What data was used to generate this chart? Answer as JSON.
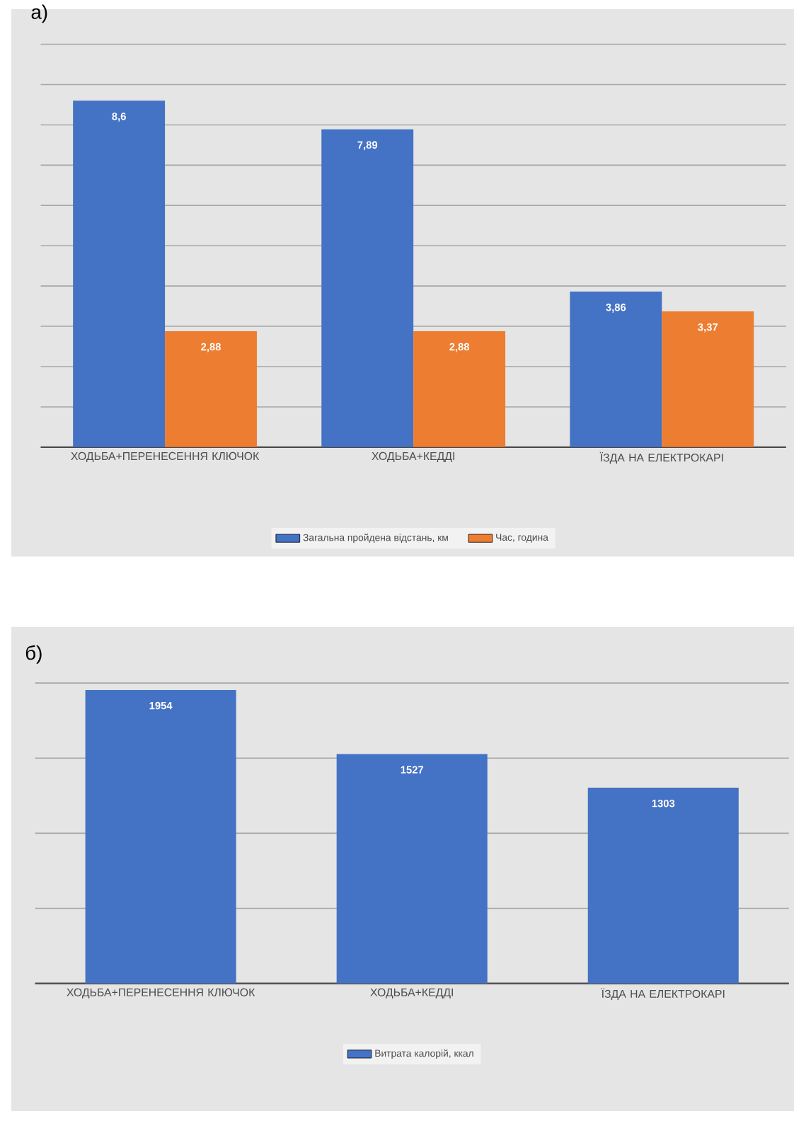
{
  "chart_data": [
    {
      "type": "bar",
      "title": "а)",
      "categories": [
        "ХОДЬБА+ПЕРЕНЕСЕННЯ КЛЮЧОК",
        "ХОДЬБА+КЕДДІ",
        "ЇЗДА НА ЕЛЕКТРОКАРІ"
      ],
      "series": [
        {
          "name": "Загальна пройдена відстань, км",
          "color": "#4472c4",
          "values": [
            8.6,
            7.89,
            3.86
          ],
          "value_labels": [
            "8,6",
            "7,89",
            "3,86"
          ]
        },
        {
          "name": "Час, година",
          "color": "#ed7d31",
          "values": [
            2.88,
            2.88,
            3.37
          ],
          "value_labels": [
            "2,88",
            "2,88",
            "3,37"
          ]
        }
      ],
      "ylim": [
        0,
        10
      ],
      "yticks": [
        {
          "value": 0,
          "label": null
        },
        {
          "value": 1,
          "label": null
        },
        {
          "value": 2,
          "label": null
        },
        {
          "value": 3,
          "label": null
        },
        {
          "value": 4,
          "label": null
        },
        {
          "value": 5,
          "label": null
        },
        {
          "value": 6,
          "label": null
        },
        {
          "value": 7,
          "label": null
        },
        {
          "value": 8,
          "label": null
        },
        {
          "value": 9,
          "label": null
        },
        {
          "value": 10,
          "label": null
        }
      ],
      "grid": "y",
      "legend": "bottom",
      "tick_labels": "x"
    },
    {
      "type": "bar",
      "title": "б)",
      "categories": [
        "ХОДЬБА+ПЕРЕНЕСЕННЯ КЛЮЧОК",
        "ХОДЬБА+КЕДДІ",
        "ЇЗДА НА ЕЛЕКТРОКАРІ"
      ],
      "series": [
        {
          "name": "Витрата калорій, ккал",
          "color": "#4472c4",
          "values": [
            1954,
            1527,
            1303
          ],
          "value_labels": [
            "1954",
            "1527",
            "1303"
          ]
        }
      ],
      "ylim": [
        0,
        2000
      ],
      "yticks": [
        {
          "value": 0,
          "label": null
        },
        {
          "value": 500,
          "label": null
        },
        {
          "value": 1000,
          "label": null
        },
        {
          "value": 1500,
          "label": null
        },
        {
          "value": 2000,
          "label": null
        }
      ],
      "grid": "y",
      "legend": "bottom",
      "tick_labels": "x"
    }
  ]
}
